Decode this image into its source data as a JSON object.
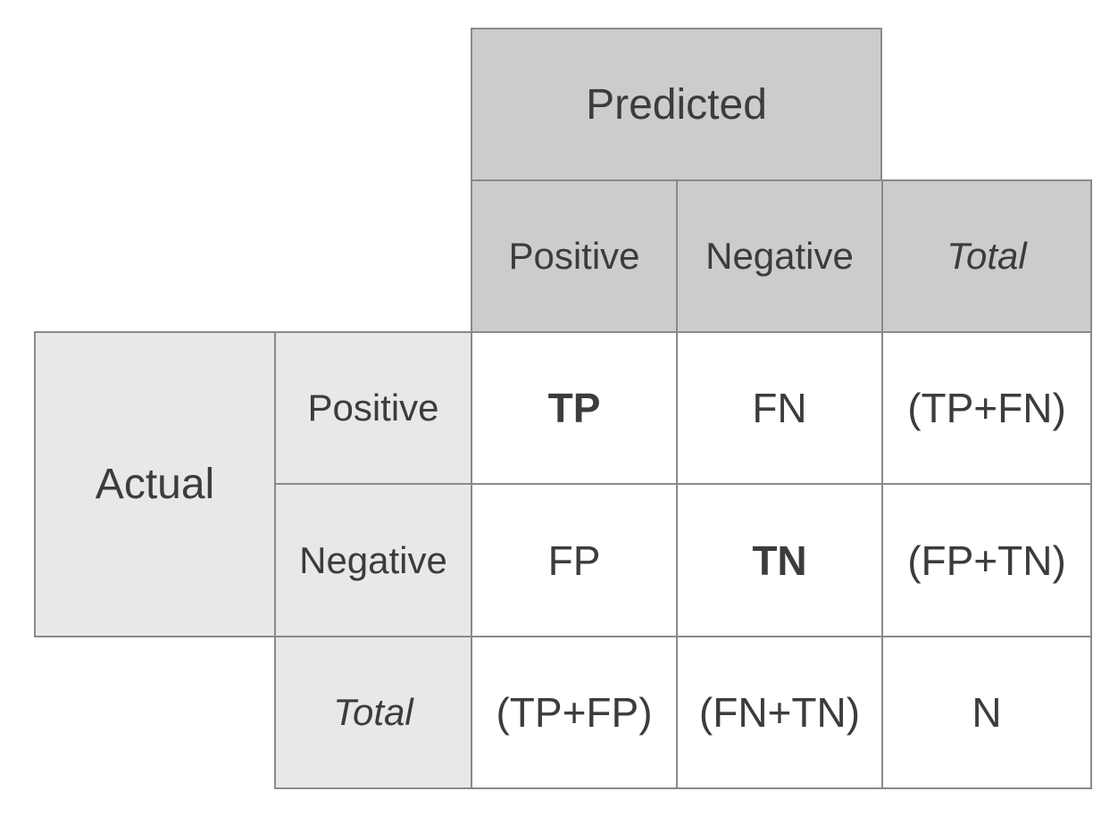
{
  "header": {
    "predicted": "Predicted",
    "columns": [
      "Positive",
      "Negative",
      "Total"
    ]
  },
  "side": {
    "actual": "Actual",
    "rows": [
      "Positive",
      "Negative",
      "Total"
    ]
  },
  "matrix": [
    [
      "TP",
      "FN",
      "(TP+FN)"
    ],
    [
      "FP",
      "TN",
      "(FP+TN)"
    ],
    [
      "(TP+FP)",
      "(FN+TN)",
      "N"
    ]
  ],
  "colors": {
    "header_dark": "#cccccc",
    "header_light": "#e8e8e8",
    "border": "#8a8a8a",
    "text": "#3c3c3c"
  }
}
